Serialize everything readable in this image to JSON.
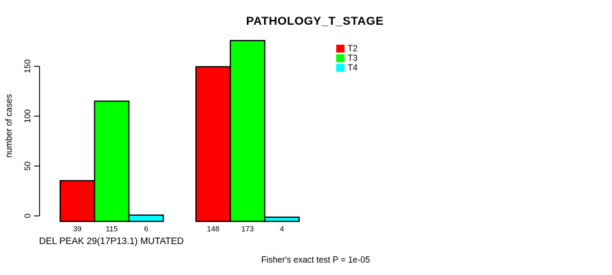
{
  "title": "PATHOLOGY_T_STAGE",
  "annotation": "Fisher's exact test P = 1e-05",
  "colors": {
    "background": "#ffffff",
    "bar_border": "#000000",
    "axis": "#000000",
    "t2": "#ff0000",
    "t3": "#00ff00",
    "t4": "#00ffff"
  },
  "chart_data": {
    "type": "bar",
    "title": "PATHOLOGY_T_STAGE",
    "ylabel": "number of cases",
    "xlabel": "",
    "categories": [
      "DEL PEAK 29(17P13.1) MUTATED",
      ""
    ],
    "series": [
      {
        "name": "T2",
        "color": "#ff0000",
        "values": [
          39,
          148
        ]
      },
      {
        "name": "T3",
        "color": "#00ff00",
        "values": [
          115,
          173
        ]
      },
      {
        "name": "T4",
        "color": "#00ffff",
        "values": [
          6,
          4
        ]
      }
    ],
    "bar_value_labels": [
      [
        39,
        115,
        6
      ],
      [
        148,
        173,
        4
      ]
    ],
    "yticks": [
      0,
      50,
      100,
      150
    ],
    "ylim": [
      0,
      180
    ],
    "grid": false,
    "legend_position": "top-right",
    "annotation": "Fisher's exact test P = 1e-05"
  }
}
